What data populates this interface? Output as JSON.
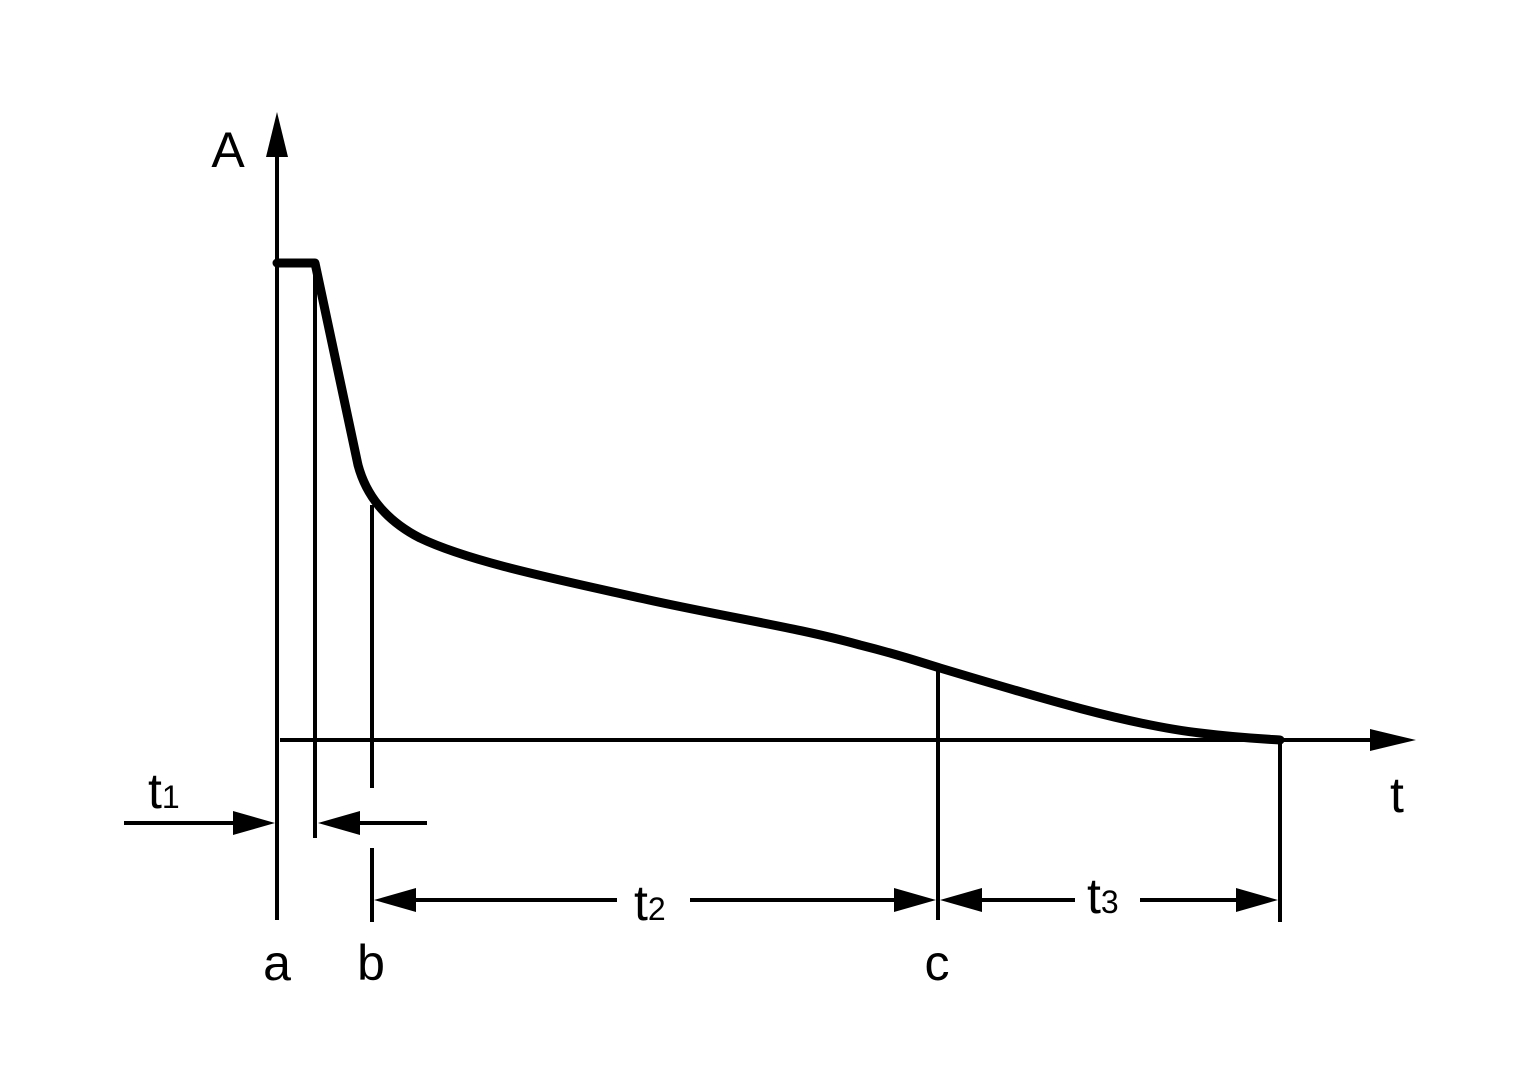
{
  "diagram": {
    "y_axis_label": "A",
    "x_axis_label": "t",
    "points": [
      "a",
      "b",
      "c"
    ],
    "intervals": [
      {
        "base": "t",
        "sub": "1"
      },
      {
        "base": "t",
        "sub": "2"
      },
      {
        "base": "t",
        "sub": "3"
      }
    ]
  },
  "colors": {
    "ink": "#000000",
    "background": "#ffffff"
  }
}
